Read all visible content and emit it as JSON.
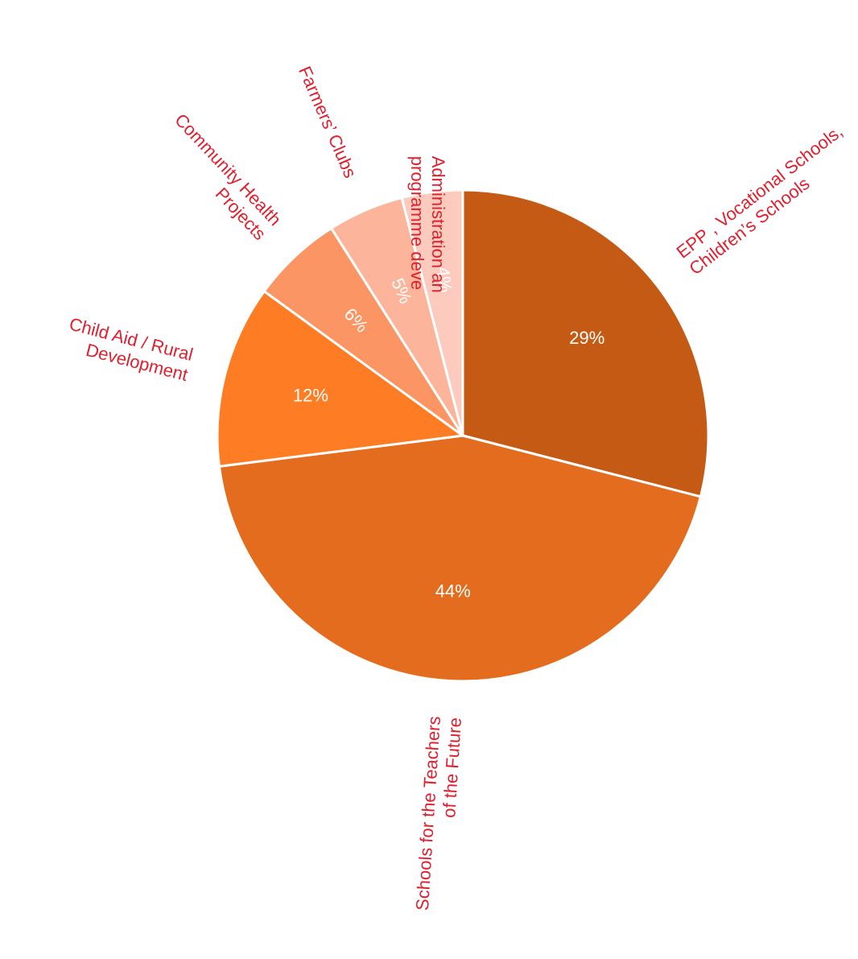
{
  "chart_data": {
    "type": "pie",
    "title": "",
    "legend": "none",
    "label_color": "#e0202e",
    "pct_label_color": "#ffffff",
    "slice_border_color": "#ffffff",
    "slices": [
      {
        "name": "EPP , Vocational Schools, Children’s Schools",
        "lines": [
          "EPP , Vocational Schools,",
          "Children’s Schools"
        ],
        "value": 29,
        "label": "29%",
        "color": "#c55a15"
      },
      {
        "name": "Schools for the Teachers of the Future",
        "lines": [
          "Schools for the Teachers",
          "of the Future"
        ],
        "value": 44,
        "label": "44%",
        "color": "#e46c1e"
      },
      {
        "name": "Child Aid / Rural Development",
        "lines": [
          "Child Aid / Rural",
          "Development"
        ],
        "value": 12,
        "label": "12%",
        "color": "#fe7d24"
      },
      {
        "name": "Community Health Projects",
        "lines": [
          "Community Health",
          "Projects"
        ],
        "value": 6,
        "label": "6%",
        "color": "#fb9563"
      },
      {
        "name": "Farmers’ Clubs",
        "lines": [
          "Farmers’ Clubs"
        ],
        "value": 5,
        "label": "5%",
        "color": "#fcb59a"
      },
      {
        "name": "Administration and programme development",
        "lines": [
          "Administration an",
          "programme deve"
        ],
        "value": 4,
        "label": "4%",
        "color": "#fccbbe"
      }
    ]
  }
}
